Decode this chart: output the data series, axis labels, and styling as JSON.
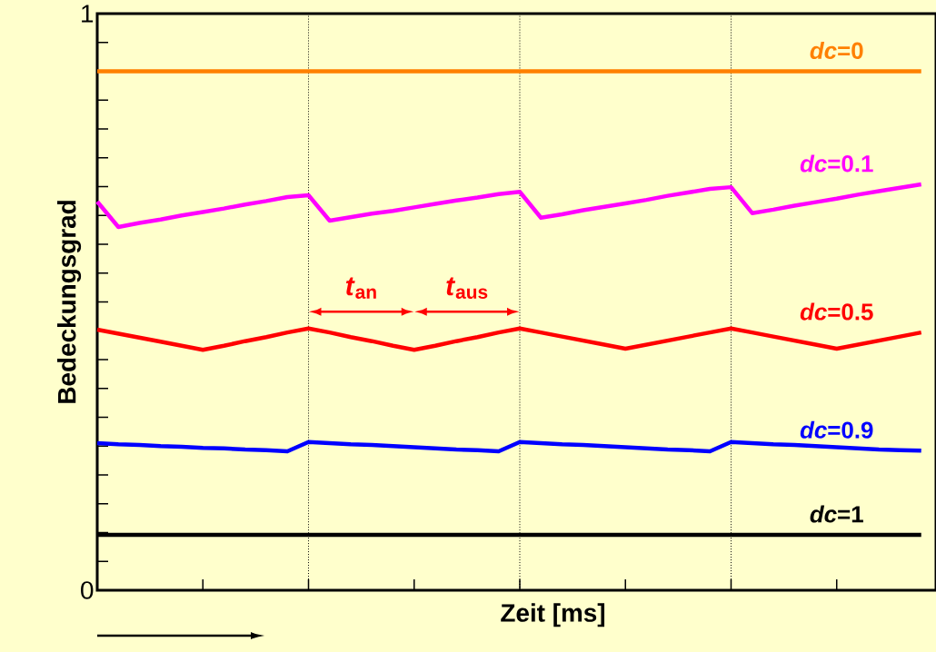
{
  "chart_data": {
    "type": "line",
    "xlabel": "Zeit [ms]",
    "ylabel": "Bedeckungsgrad",
    "categories": [
      null,
      null,
      null,
      null,
      null,
      null,
      null,
      null,
      null,
      null,
      null,
      null,
      null,
      null,
      null,
      null,
      null,
      null,
      null,
      null,
      null,
      null,
      null,
      null,
      null,
      null,
      null,
      null,
      null,
      null,
      null,
      null,
      null,
      null,
      null,
      null,
      null,
      null,
      null,
      null
    ],
    "ylim": [
      0,
      1
    ],
    "yticks": [
      {
        "value": 0,
        "label": "0"
      },
      {
        "value": 0.05,
        "label": null
      },
      {
        "value": 0.1,
        "label": null
      },
      {
        "value": 0.15,
        "label": null
      },
      {
        "value": 0.2,
        "label": null
      },
      {
        "value": 0.25,
        "label": null
      },
      {
        "value": 0.3,
        "label": null
      },
      {
        "value": 0.35,
        "label": null
      },
      {
        "value": 0.4,
        "label": null
      },
      {
        "value": 0.45,
        "label": null
      },
      {
        "value": 0.5,
        "label": null
      },
      {
        "value": 0.55,
        "label": null
      },
      {
        "value": 0.6,
        "label": null
      },
      {
        "value": 0.65,
        "label": null
      },
      {
        "value": 0.7,
        "label": null
      },
      {
        "value": 0.75,
        "label": null
      },
      {
        "value": 0.8,
        "label": null
      },
      {
        "value": 0.85,
        "label": null
      },
      {
        "value": 0.9,
        "label": null
      },
      {
        "value": 0.95,
        "label": null
      },
      {
        "value": 1,
        "label": "1"
      }
    ],
    "tick_labels": "y",
    "marker": "none",
    "line_style": "solid",
    "series": [
      {
        "name": "*dc*=0",
        "color": "#ff8000",
        "values": [
          0.9,
          0.9,
          0.9,
          0.9,
          0.9,
          0.9,
          0.9,
          0.9,
          0.9,
          0.9,
          0.9,
          0.9,
          0.9,
          0.9,
          0.9,
          0.9,
          0.9,
          0.9,
          0.9,
          0.9,
          0.9,
          0.9,
          0.9,
          0.9,
          0.9,
          0.9,
          0.9,
          0.9,
          0.9,
          0.9,
          0.9,
          0.9,
          0.9,
          0.9,
          0.9,
          0.9,
          0.9,
          0.9,
          0.9,
          0.9
        ]
      },
      {
        "name": "*dc*=0.1",
        "color": "#ff00ff",
        "values": [
          0.674,
          0.63,
          0.637,
          0.643,
          0.65,
          0.656,
          0.662,
          0.669,
          0.675,
          0.682,
          0.685,
          0.641,
          0.647,
          0.653,
          0.658,
          0.664,
          0.67,
          0.676,
          0.681,
          0.687,
          0.691,
          0.646,
          0.652,
          0.659,
          0.665,
          0.671,
          0.677,
          0.684,
          0.69,
          0.696,
          0.699,
          0.654,
          0.66,
          0.667,
          0.673,
          0.679,
          0.686,
          0.692,
          0.698,
          0.704
        ]
      },
      {
        "name": "*dc*=0.5",
        "color": "#ff0000",
        "values": [
          0.452,
          0.445,
          0.438,
          0.431,
          0.424,
          0.417,
          0.424,
          0.432,
          0.439,
          0.447,
          0.454,
          0.447,
          0.439,
          0.432,
          0.424,
          0.417,
          0.424,
          0.432,
          0.439,
          0.447,
          0.454,
          0.447,
          0.44,
          0.433,
          0.426,
          0.419,
          0.426,
          0.433,
          0.44,
          0.447,
          0.454,
          0.447,
          0.44,
          0.433,
          0.426,
          0.419,
          0.426,
          0.433,
          0.44,
          0.447
        ]
      },
      {
        "name": "*dc*=0.9",
        "color": "#0000ff",
        "values": [
          0.255,
          0.253,
          0.252,
          0.25,
          0.249,
          0.247,
          0.246,
          0.244,
          0.243,
          0.241,
          0.257,
          0.255,
          0.253,
          0.252,
          0.25,
          0.248,
          0.246,
          0.244,
          0.243,
          0.241,
          0.257,
          0.255,
          0.253,
          0.252,
          0.25,
          0.248,
          0.246,
          0.244,
          0.243,
          0.241,
          0.257,
          0.255,
          0.253,
          0.252,
          0.25,
          0.248,
          0.246,
          0.244,
          0.243,
          0.242
        ]
      },
      {
        "name": "*dc*=1",
        "color": "#000000",
        "values": [
          0.096,
          0.096,
          0.096,
          0.096,
          0.096,
          0.096,
          0.096,
          0.096,
          0.096,
          0.096,
          0.096,
          0.096,
          0.096,
          0.096,
          0.096,
          0.096,
          0.096,
          0.096,
          0.096,
          0.096,
          0.096,
          0.096,
          0.096,
          0.096,
          0.096,
          0.096,
          0.096,
          0.096,
          0.096,
          0.096,
          0.096,
          0.096,
          0.096,
          0.096,
          0.096,
          0.096,
          0.096,
          0.096,
          0.096,
          0.096
        ]
      }
    ],
    "annotations": [
      "*t*$_{an}$",
      "*t*$_{aus}$"
    ]
  }
}
